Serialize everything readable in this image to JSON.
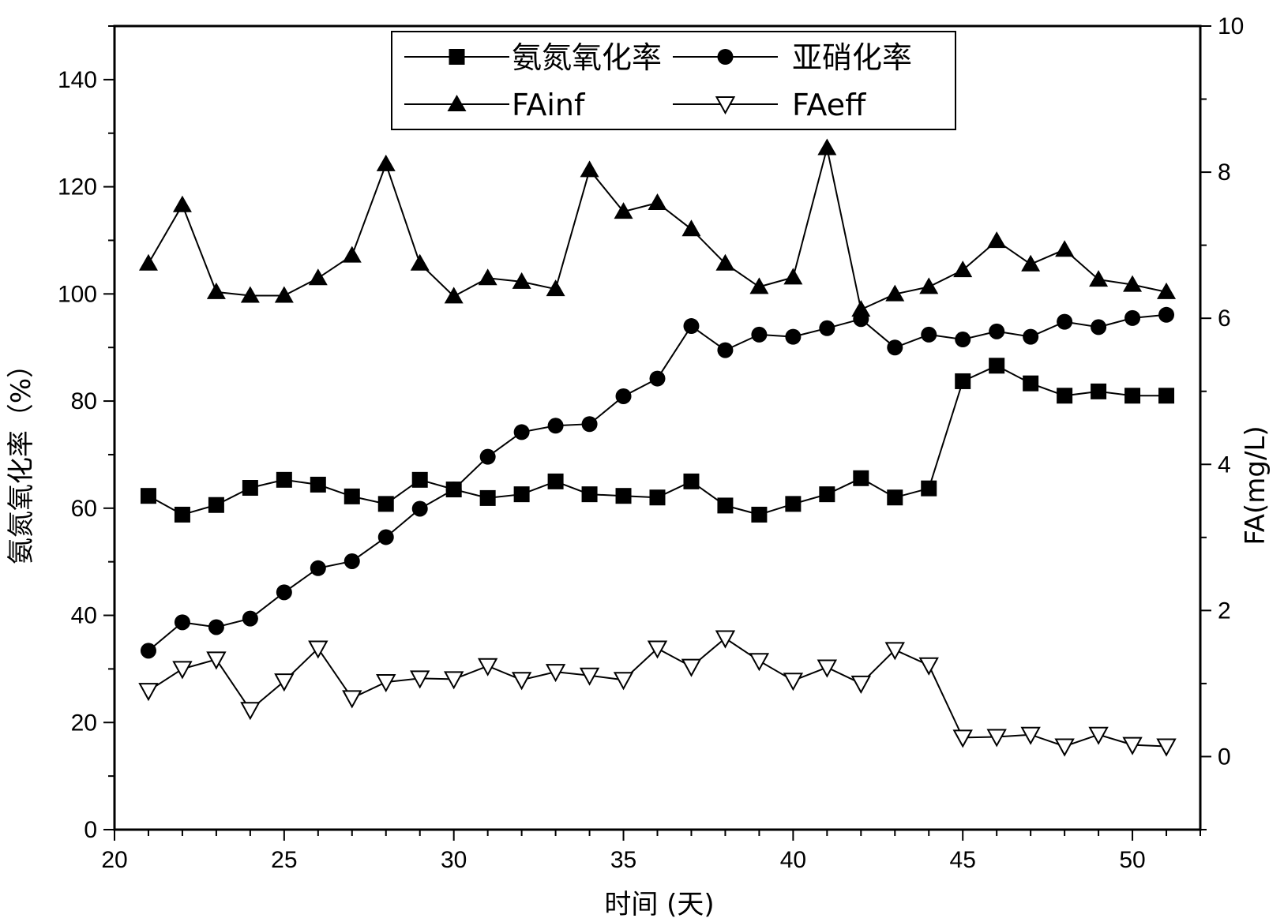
{
  "chart_data": {
    "type": "line",
    "xlabel": "时间 (天)",
    "ylabel_left": "氨氮氧化率（%）",
    "ylabel_right": "FA(mg/L)",
    "xlim": [
      20,
      52
    ],
    "ylim_left": [
      0,
      150
    ],
    "ylim_right": [
      -1.0,
      10.0
    ],
    "x_ticks": [
      20,
      25,
      30,
      35,
      40,
      45,
      50
    ],
    "y_ticks_left": [
      0,
      20,
      40,
      60,
      80,
      100,
      120,
      140
    ],
    "y_ticks_right": [
      0,
      2,
      4,
      6,
      8,
      10
    ],
    "grid": false,
    "legend_position": "top-center",
    "x": [
      21,
      22,
      23,
      24,
      25,
      26,
      27,
      28,
      29,
      30,
      31,
      32,
      33,
      34,
      35,
      36,
      37,
      38,
      39,
      40,
      41,
      42,
      43,
      44,
      45,
      46,
      47,
      48,
      49,
      50,
      51
    ],
    "series": [
      {
        "name": "氨氮氧化率",
        "axis": "left",
        "marker": "square",
        "values": [
          62.3,
          58.8,
          60.6,
          63.8,
          65.3,
          64.4,
          62.2,
          60.8,
          65.3,
          63.5,
          61.9,
          62.6,
          65.0,
          62.6,
          62.3,
          62.0,
          65.0,
          60.5,
          58.8,
          60.8,
          62.6,
          65.6,
          62.0,
          63.7,
          83.7,
          86.6,
          83.3,
          81.0,
          81.8,
          81.0,
          81.0
        ]
      },
      {
        "name": "亚硝化率",
        "axis": "left",
        "marker": "circle",
        "values": [
          33.4,
          38.7,
          37.8,
          39.4,
          44.3,
          48.8,
          50.1,
          54.6,
          59.9,
          63.5,
          69.6,
          74.2,
          75.4,
          75.7,
          80.9,
          84.2,
          94.0,
          89.5,
          92.4,
          92.0,
          93.6,
          95.3,
          90.0,
          92.4,
          91.5,
          93.0,
          92.0,
          94.8,
          93.8,
          95.5,
          96.1
        ]
      },
      {
        "name": "FAinf",
        "axis": "right",
        "marker": "triangle-up",
        "values": [
          6.75,
          7.55,
          6.36,
          6.31,
          6.31,
          6.55,
          6.86,
          8.11,
          6.75,
          6.3,
          6.55,
          6.5,
          6.4,
          8.03,
          7.46,
          7.58,
          7.22,
          6.75,
          6.43,
          6.56,
          8.33,
          6.12,
          6.33,
          6.43,
          6.66,
          7.06,
          6.74,
          6.94,
          6.53,
          6.46,
          6.36
        ]
      },
      {
        "name": "FAeff",
        "axis": "right",
        "marker": "triangle-down-open",
        "values": [
          0.9,
          1.2,
          1.33,
          0.64,
          1.03,
          1.48,
          0.8,
          1.02,
          1.07,
          1.06,
          1.24,
          1.05,
          1.16,
          1.11,
          1.05,
          1.48,
          1.23,
          1.62,
          1.31,
          1.04,
          1.22,
          1.0,
          1.46,
          1.25,
          0.26,
          0.27,
          0.3,
          0.14,
          0.3,
          0.16,
          0.14
        ]
      }
    ]
  }
}
